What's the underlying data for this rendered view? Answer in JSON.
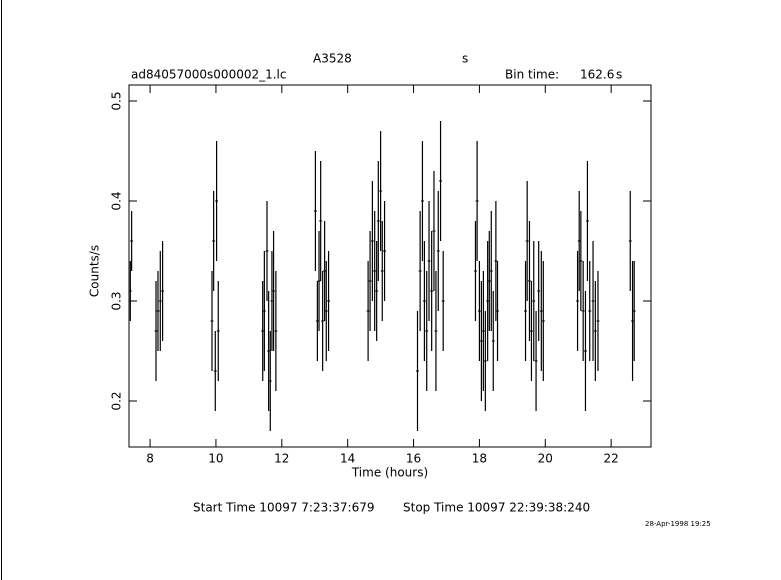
{
  "chart_data": {
    "type": "errorbar",
    "title": "A3528",
    "title_unit": "s",
    "subtitle": "ad84057000s000002_1.lc",
    "bin_time_label": "Bin time:",
    "bin_time": "162.6",
    "bin_time_unit": "s",
    "xlabel": "Time (hours)",
    "ylabel": "Counts/s",
    "start_time": "Start Time 10097  7:23:37:679",
    "stop_time": "Stop Time 10097 22:39:38:240",
    "date": "28-Apr-1998 19:25",
    "xlim": [
      7.36,
      23.21
    ],
    "ylim": [
      0.154,
      0.516
    ],
    "xticks": [
      8,
      10,
      12,
      14,
      16,
      18,
      20,
      22
    ],
    "yticks": [
      0.2,
      0.3,
      0.4,
      0.5
    ],
    "series": [
      {
        "color": "#000000",
        "x": [
          7.4,
          7.44,
          8.18,
          8.24,
          8.31,
          8.38,
          9.88,
          9.93,
          9.98,
          10.02,
          10.07,
          11.42,
          11.47,
          11.55,
          11.6,
          11.65,
          11.7,
          11.75,
          11.82,
          13.02,
          13.08,
          13.13,
          13.18,
          13.24,
          13.3,
          13.35,
          13.42,
          14.62,
          14.68,
          14.75,
          14.82,
          14.88,
          14.93,
          15.0,
          15.05,
          15.12,
          16.12,
          16.2,
          16.27,
          16.33,
          16.4,
          16.47,
          16.55,
          16.62,
          16.68,
          16.75,
          16.82,
          16.9,
          17.88,
          17.93,
          18.0,
          18.06,
          18.12,
          18.18,
          18.25,
          18.3,
          18.36,
          18.42,
          18.5,
          18.55,
          19.4,
          19.45,
          19.52,
          19.58,
          19.65,
          19.72,
          19.8,
          19.88,
          19.94,
          20.98,
          21.03,
          21.08,
          21.15,
          21.22,
          21.28,
          21.35,
          21.45,
          21.52,
          21.6,
          22.58,
          22.65,
          22.7
        ],
        "values": [
          0.31,
          0.36,
          0.27,
          0.29,
          0.3,
          0.31,
          0.28,
          0.36,
          0.23,
          0.4,
          0.27,
          0.27,
          0.29,
          0.35,
          0.25,
          0.22,
          0.3,
          0.31,
          0.27,
          0.39,
          0.28,
          0.32,
          0.38,
          0.28,
          0.33,
          0.29,
          0.3,
          0.29,
          0.32,
          0.36,
          0.33,
          0.31,
          0.38,
          0.41,
          0.33,
          0.35,
          0.23,
          0.33,
          0.4,
          0.3,
          0.27,
          0.34,
          0.31,
          0.37,
          0.27,
          0.35,
          0.42,
          0.3,
          0.33,
          0.4,
          0.29,
          0.26,
          0.27,
          0.24,
          0.3,
          0.32,
          0.33,
          0.26,
          0.34,
          0.29,
          0.29,
          0.36,
          0.32,
          0.27,
          0.3,
          0.24,
          0.31,
          0.29,
          0.28,
          0.3,
          0.36,
          0.34,
          0.29,
          0.25,
          0.38,
          0.29,
          0.3,
          0.27,
          0.28,
          0.36,
          0.28,
          0.29
        ],
        "errors": [
          0.03,
          0.03,
          0.05,
          0.04,
          0.05,
          0.05,
          0.05,
          0.05,
          0.04,
          0.06,
          0.05,
          0.05,
          0.06,
          0.05,
          0.06,
          0.05,
          0.05,
          0.06,
          0.06,
          0.06,
          0.04,
          0.05,
          0.06,
          0.05,
          0.05,
          0.05,
          0.05,
          0.05,
          0.05,
          0.06,
          0.06,
          0.05,
          0.06,
          0.06,
          0.05,
          0.05,
          0.06,
          0.06,
          0.06,
          0.06,
          0.06,
          0.06,
          0.06,
          0.06,
          0.06,
          0.06,
          0.06,
          0.05,
          0.05,
          0.06,
          0.05,
          0.06,
          0.06,
          0.05,
          0.06,
          0.05,
          0.06,
          0.05,
          0.06,
          0.05,
          0.05,
          0.06,
          0.06,
          0.05,
          0.06,
          0.05,
          0.05,
          0.06,
          0.06,
          0.05,
          0.05,
          0.05,
          0.05,
          0.06,
          0.06,
          0.05,
          0.06,
          0.05,
          0.05,
          0.05,
          0.06,
          0.05
        ]
      }
    ]
  }
}
